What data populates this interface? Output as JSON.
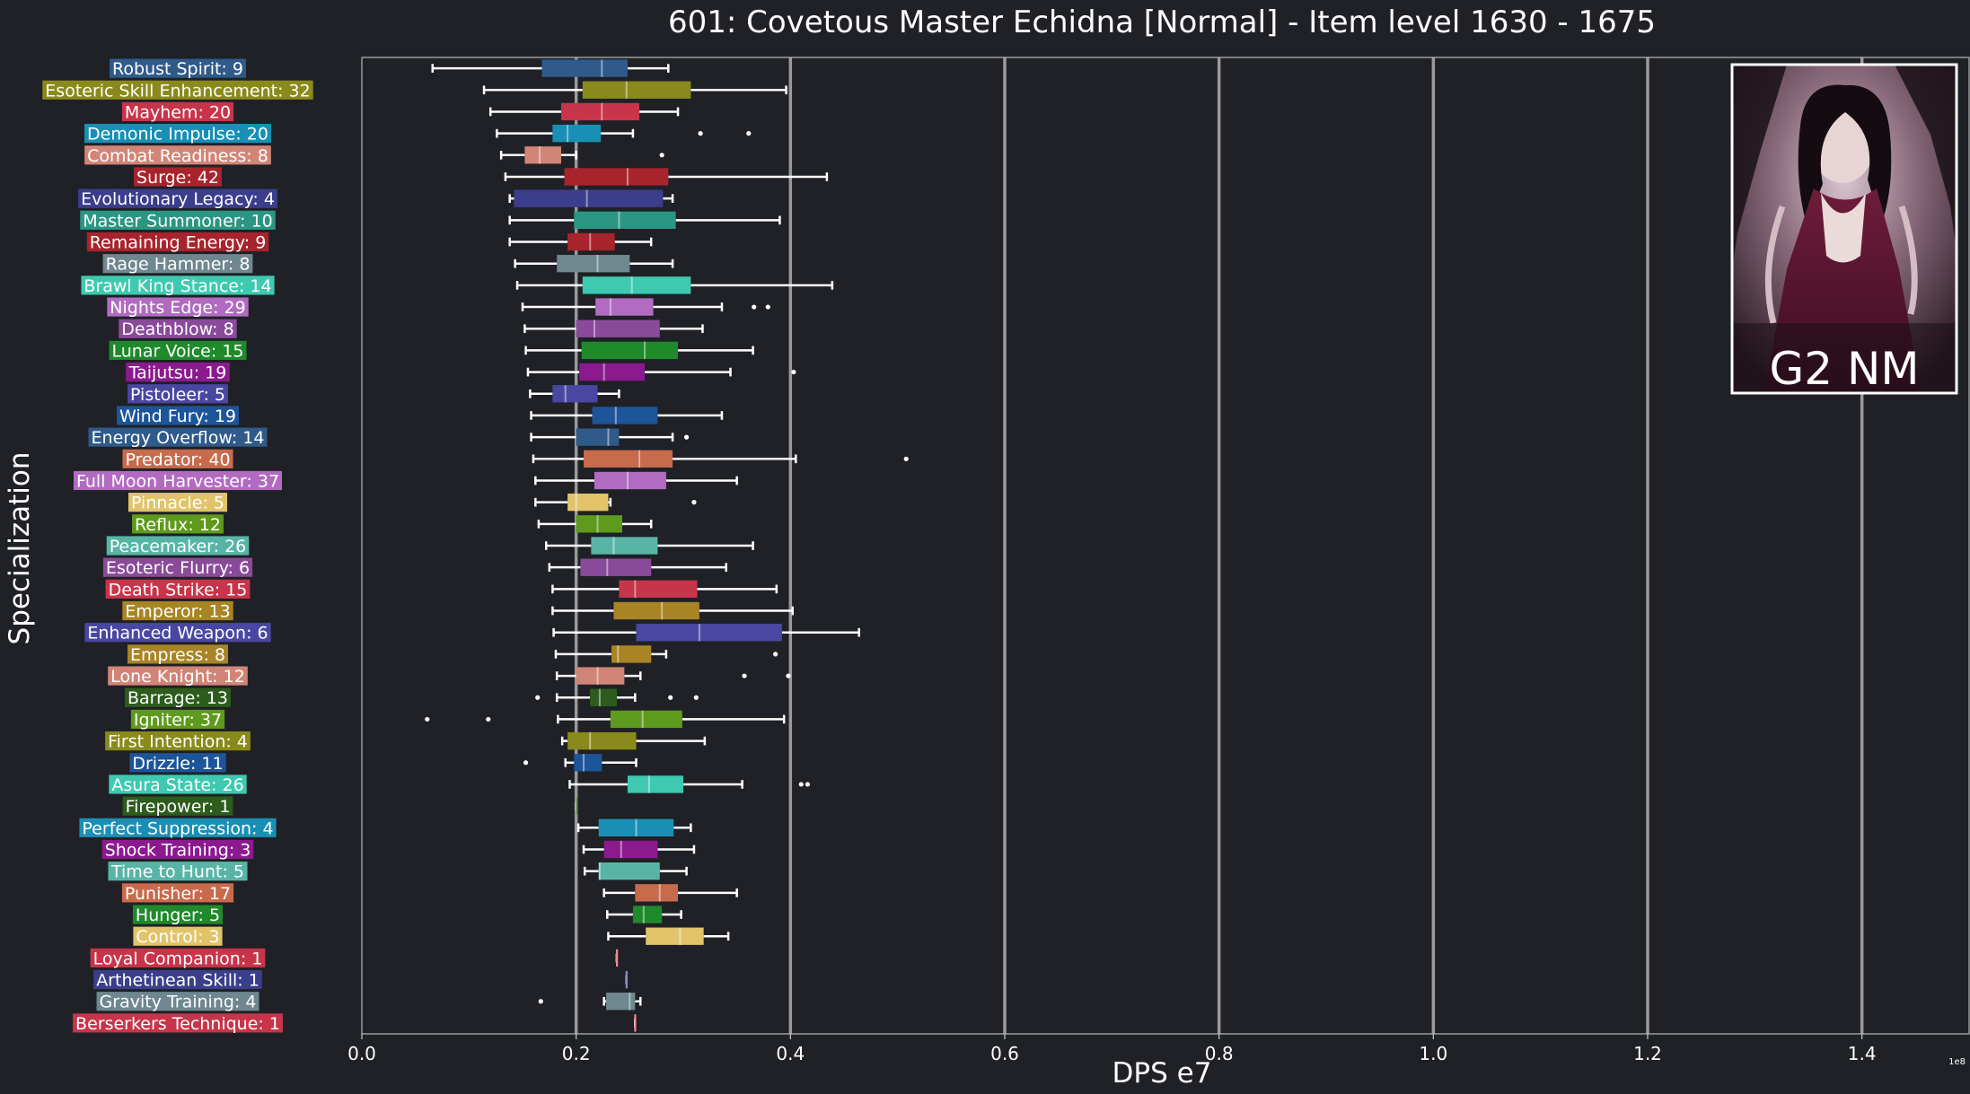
{
  "chart_data": {
    "type": "box",
    "title": "601: Covetous Master Echidna [Normal] - Item level 1630 - 1675",
    "xlabel": "DPS e7",
    "ylabel": "Specialization",
    "x_offset_label": "1e8",
    "xlim": [
      0,
      1.5
    ],
    "xticks": [
      0.0,
      0.2,
      0.4,
      0.6,
      0.8,
      1.0,
      1.2,
      1.4
    ],
    "xtick_labels": [
      "0.0",
      "0.2",
      "0.4",
      "0.6",
      "0.8",
      "1.0",
      "1.2",
      "1.4"
    ],
    "grid": "vertical lines at major x ticks",
    "inset_image_label": "G2 NM",
    "series": [
      {
        "label": "Robust Spirit: 9",
        "color": "#2f5a8a",
        "min": 0.066,
        "q1": 0.168,
        "median": 0.224,
        "q3": 0.248,
        "max": 0.286,
        "outliers": []
      },
      {
        "label": "Esoteric Skill Enhancement: 32",
        "color": "#8a8a1c",
        "min": 0.114,
        "q1": 0.206,
        "median": 0.247,
        "q3": 0.307,
        "max": 0.396,
        "outliers": []
      },
      {
        "label": "Mayhem: 20",
        "color": "#c8344a",
        "min": 0.12,
        "q1": 0.186,
        "median": 0.224,
        "q3": 0.259,
        "max": 0.295,
        "outliers": []
      },
      {
        "label": "Demonic Impulse: 20",
        "color": "#1a8fb5",
        "min": 0.126,
        "q1": 0.178,
        "median": 0.192,
        "q3": 0.223,
        "max": 0.253,
        "outliers": [
          0.316,
          0.361
        ]
      },
      {
        "label": "Combat Readiness: 8",
        "color": "#d18576",
        "min": 0.13,
        "q1": 0.152,
        "median": 0.166,
        "q3": 0.186,
        "max": 0.2,
        "outliers": [
          0.28
        ]
      },
      {
        "label": "Surge: 42",
        "color": "#a8242c",
        "min": 0.134,
        "q1": 0.189,
        "median": 0.248,
        "q3": 0.286,
        "max": 0.434,
        "outliers": []
      },
      {
        "label": "Evolutionary Legacy: 4",
        "color": "#3b3e8c",
        "min": 0.138,
        "q1": 0.142,
        "median": 0.21,
        "q3": 0.281,
        "max": 0.29,
        "outliers": []
      },
      {
        "label": "Master Summoner: 10",
        "color": "#2b9683",
        "min": 0.138,
        "q1": 0.198,
        "median": 0.24,
        "q3": 0.293,
        "max": 0.39,
        "outliers": []
      },
      {
        "label": "Remaining Energy: 9",
        "color": "#a8242c",
        "min": 0.138,
        "q1": 0.192,
        "median": 0.213,
        "q3": 0.236,
        "max": 0.27,
        "outliers": []
      },
      {
        "label": "Rage Hammer: 8",
        "color": "#6f878f",
        "min": 0.143,
        "q1": 0.182,
        "median": 0.22,
        "q3": 0.25,
        "max": 0.29,
        "outliers": []
      },
      {
        "label": "Brawl King Stance: 14",
        "color": "#3fc9b0",
        "min": 0.145,
        "q1": 0.206,
        "median": 0.252,
        "q3": 0.307,
        "max": 0.439,
        "outliers": []
      },
      {
        "label": "Nights Edge: 29",
        "color": "#b16bc0",
        "min": 0.15,
        "q1": 0.218,
        "median": 0.232,
        "q3": 0.272,
        "max": 0.336,
        "outliers": [
          0.366,
          0.379
        ]
      },
      {
        "label": "Deathblow: 8",
        "color": "#8a4a9a",
        "min": 0.152,
        "q1": 0.2,
        "median": 0.217,
        "q3": 0.278,
        "max": 0.318,
        "outliers": []
      },
      {
        "label": "Lunar Voice: 15",
        "color": "#1f8a2a",
        "min": 0.153,
        "q1": 0.205,
        "median": 0.264,
        "q3": 0.295,
        "max": 0.365,
        "outliers": []
      },
      {
        "label": "Taijutsu: 19",
        "color": "#8b1a8f",
        "min": 0.155,
        "q1": 0.203,
        "median": 0.226,
        "q3": 0.264,
        "max": 0.344,
        "outliers": [
          0.403
        ]
      },
      {
        "label": "Pistoleer: 5",
        "color": "#4a47a3",
        "min": 0.157,
        "q1": 0.178,
        "median": 0.19,
        "q3": 0.22,
        "max": 0.24,
        "outliers": []
      },
      {
        "label": "Wind Fury: 19",
        "color": "#1c5599",
        "min": 0.158,
        "q1": 0.215,
        "median": 0.237,
        "q3": 0.276,
        "max": 0.336,
        "outliers": []
      },
      {
        "label": "Energy Overflow: 14",
        "color": "#2f5a8a",
        "min": 0.158,
        "q1": 0.2,
        "median": 0.23,
        "q3": 0.24,
        "max": 0.29,
        "outliers": [
          0.303
        ]
      },
      {
        "label": "Predator: 40",
        "color": "#c86a4c",
        "min": 0.16,
        "q1": 0.207,
        "median": 0.259,
        "q3": 0.29,
        "max": 0.405,
        "outliers": [
          0.508
        ]
      },
      {
        "label": "Full Moon Harvester: 37",
        "color": "#b16bc0",
        "min": 0.162,
        "q1": 0.217,
        "median": 0.248,
        "q3": 0.284,
        "max": 0.35,
        "outliers": []
      },
      {
        "label": "Pinnacle: 5",
        "color": "#e1c46a",
        "min": 0.162,
        "q1": 0.192,
        "median": 0.2,
        "q3": 0.23,
        "max": 0.232,
        "outliers": [
          0.31
        ]
      },
      {
        "label": "Reflux: 12",
        "color": "#5e9a1c",
        "min": 0.165,
        "q1": 0.2,
        "median": 0.22,
        "q3": 0.243,
        "max": 0.27,
        "outliers": []
      },
      {
        "label": "Peacemaker: 26",
        "color": "#58b5a6",
        "min": 0.172,
        "q1": 0.214,
        "median": 0.235,
        "q3": 0.276,
        "max": 0.365,
        "outliers": []
      },
      {
        "label": "Esoteric Flurry: 6",
        "color": "#8a4a9a",
        "min": 0.175,
        "q1": 0.204,
        "median": 0.229,
        "q3": 0.27,
        "max": 0.34,
        "outliers": []
      },
      {
        "label": "Death Strike: 15",
        "color": "#c8344a",
        "min": 0.178,
        "q1": 0.24,
        "median": 0.255,
        "q3": 0.313,
        "max": 0.387,
        "outliers": []
      },
      {
        "label": "Emperor: 13",
        "color": "#a88424",
        "min": 0.178,
        "q1": 0.235,
        "median": 0.28,
        "q3": 0.315,
        "max": 0.402,
        "outliers": []
      },
      {
        "label": "Enhanced Weapon: 6",
        "color": "#4a47a3",
        "min": 0.179,
        "q1": 0.256,
        "median": 0.315,
        "q3": 0.392,
        "max": 0.464,
        "outliers": []
      },
      {
        "label": "Empress: 8",
        "color": "#a88424",
        "min": 0.181,
        "q1": 0.233,
        "median": 0.239,
        "q3": 0.27,
        "max": 0.284,
        "outliers": [
          0.386
        ]
      },
      {
        "label": "Lone Knight: 12",
        "color": "#d18576",
        "min": 0.182,
        "q1": 0.2,
        "median": 0.22,
        "q3": 0.245,
        "max": 0.26,
        "outliers": [
          0.357,
          0.398
        ]
      },
      {
        "label": "Barrage: 13",
        "color": "#2d5c1c",
        "min": 0.182,
        "q1": 0.213,
        "median": 0.222,
        "q3": 0.238,
        "max": 0.255,
        "outliers": [
          0.164,
          0.288,
          0.312
        ]
      },
      {
        "label": "Igniter: 37",
        "color": "#5e9a1c",
        "min": 0.183,
        "q1": 0.232,
        "median": 0.262,
        "q3": 0.299,
        "max": 0.394,
        "outliers": [
          0.061,
          0.118
        ]
      },
      {
        "label": "First Intention: 4",
        "color": "#8a8a1c",
        "min": 0.187,
        "q1": 0.192,
        "median": 0.213,
        "q3": 0.256,
        "max": 0.32,
        "outliers": []
      },
      {
        "label": "Drizzle: 11",
        "color": "#1c5599",
        "min": 0.19,
        "q1": 0.198,
        "median": 0.207,
        "q3": 0.224,
        "max": 0.256,
        "outliers": [
          0.153
        ]
      },
      {
        "label": "Asura State: 26",
        "color": "#3fc9b0",
        "min": 0.194,
        "q1": 0.248,
        "median": 0.268,
        "q3": 0.3,
        "max": 0.355,
        "outliers": [
          0.41,
          0.416
        ]
      },
      {
        "label": "Firepower: 1",
        "color": "#2d5c1c",
        "min": 0.2,
        "q1": 0.2,
        "median": 0.2,
        "q3": 0.2,
        "max": 0.2,
        "outliers": []
      },
      {
        "label": "Perfect Suppression: 4",
        "color": "#1a8fb5",
        "min": 0.202,
        "q1": 0.221,
        "median": 0.256,
        "q3": 0.291,
        "max": 0.307,
        "outliers": []
      },
      {
        "label": "Shock Training: 3",
        "color": "#8b1a8f",
        "min": 0.207,
        "q1": 0.226,
        "median": 0.242,
        "q3": 0.276,
        "max": 0.31,
        "outliers": []
      },
      {
        "label": "Time to Hunt: 5",
        "color": "#58b5a6",
        "min": 0.208,
        "q1": 0.221,
        "median": 0.222,
        "q3": 0.278,
        "max": 0.303,
        "outliers": []
      },
      {
        "label": "Punisher: 17",
        "color": "#c86a4c",
        "min": 0.226,
        "q1": 0.255,
        "median": 0.278,
        "q3": 0.295,
        "max": 0.35,
        "outliers": []
      },
      {
        "label": "Hunger: 5",
        "color": "#1f8a2a",
        "min": 0.229,
        "q1": 0.253,
        "median": 0.263,
        "q3": 0.28,
        "max": 0.298,
        "outliers": []
      },
      {
        "label": "Control: 3",
        "color": "#e1c46a",
        "min": 0.23,
        "q1": 0.265,
        "median": 0.297,
        "q3": 0.319,
        "max": 0.342,
        "outliers": []
      },
      {
        "label": "Loyal Companion: 1",
        "color": "#c8344a",
        "min": 0.238,
        "q1": 0.238,
        "median": 0.238,
        "q3": 0.238,
        "max": 0.238,
        "outliers": []
      },
      {
        "label": "Arthetinean Skill: 1",
        "color": "#3b3e8c",
        "min": 0.247,
        "q1": 0.247,
        "median": 0.247,
        "q3": 0.247,
        "max": 0.247,
        "outliers": []
      },
      {
        "label": "Gravity Training: 4",
        "color": "#6f878f",
        "min": 0.226,
        "q1": 0.228,
        "median": 0.25,
        "q3": 0.255,
        "max": 0.26,
        "outliers": [
          0.167
        ]
      },
      {
        "label": "Berserkers Technique: 1",
        "color": "#c8344a",
        "min": 0.255,
        "q1": 0.255,
        "median": 0.255,
        "q3": 0.255,
        "max": 0.255,
        "outliers": []
      }
    ]
  }
}
